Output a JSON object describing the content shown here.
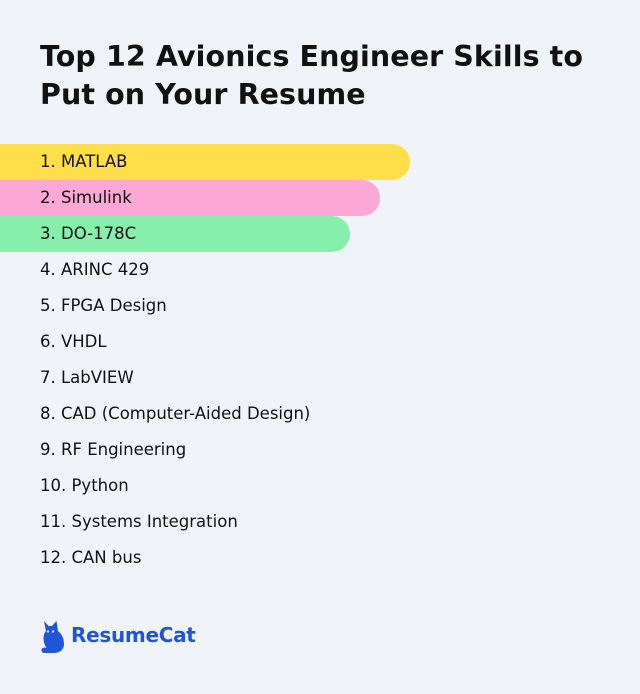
{
  "title": "Top 12 Avionics Engineer Skills to Put on Your Resume",
  "skills": [
    "1. MATLAB",
    "2. Simulink",
    "3. DO-178C",
    "4. ARINC 429",
    "5. FPGA Design",
    "6. VHDL",
    "7. LabVIEW",
    "8. CAD (Computer-Aided Design)",
    "9. RF Engineering",
    "10. Python",
    "11. Systems Integration",
    "12. CAN bus"
  ],
  "highlight_colors": [
    "#fedf4a",
    "#fba8d6",
    "#86efab"
  ],
  "brand": {
    "name": "ResumeCat",
    "icon": "cat-logo-icon",
    "color": "#1f55d6"
  }
}
